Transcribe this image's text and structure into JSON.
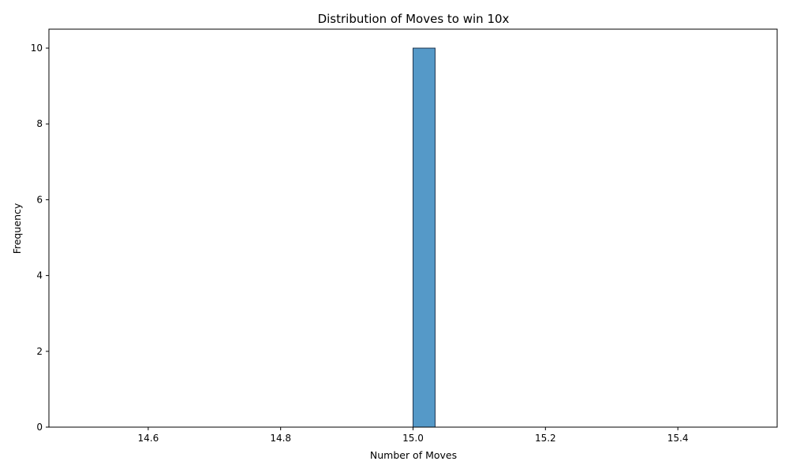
{
  "chart_data": {
    "type": "bar",
    "title": "Distribution of Moves to win 10x",
    "xlabel": "Number of Moves",
    "ylabel": "Frequency",
    "xlim": [
      14.45,
      15.55
    ],
    "ylim": [
      0,
      10.5
    ],
    "xticks": [
      14.6,
      14.8,
      15.0,
      15.2,
      15.4
    ],
    "xtick_labels": [
      "14.6",
      "14.8",
      "15.0",
      "15.2",
      "15.4"
    ],
    "yticks": [
      0,
      2,
      4,
      6,
      8,
      10
    ],
    "ytick_labels": [
      "0",
      "2",
      "4",
      "6",
      "8",
      "10"
    ],
    "bins": {
      "start": 14.5,
      "end": 15.5,
      "count": 30
    },
    "bars": [
      {
        "x_start": 15.0,
        "x_end": 15.0333,
        "value": 10
      }
    ],
    "bar_color": "#5599c8",
    "bar_edge_color": "#1f3650",
    "grid": false,
    "legend": "none"
  }
}
